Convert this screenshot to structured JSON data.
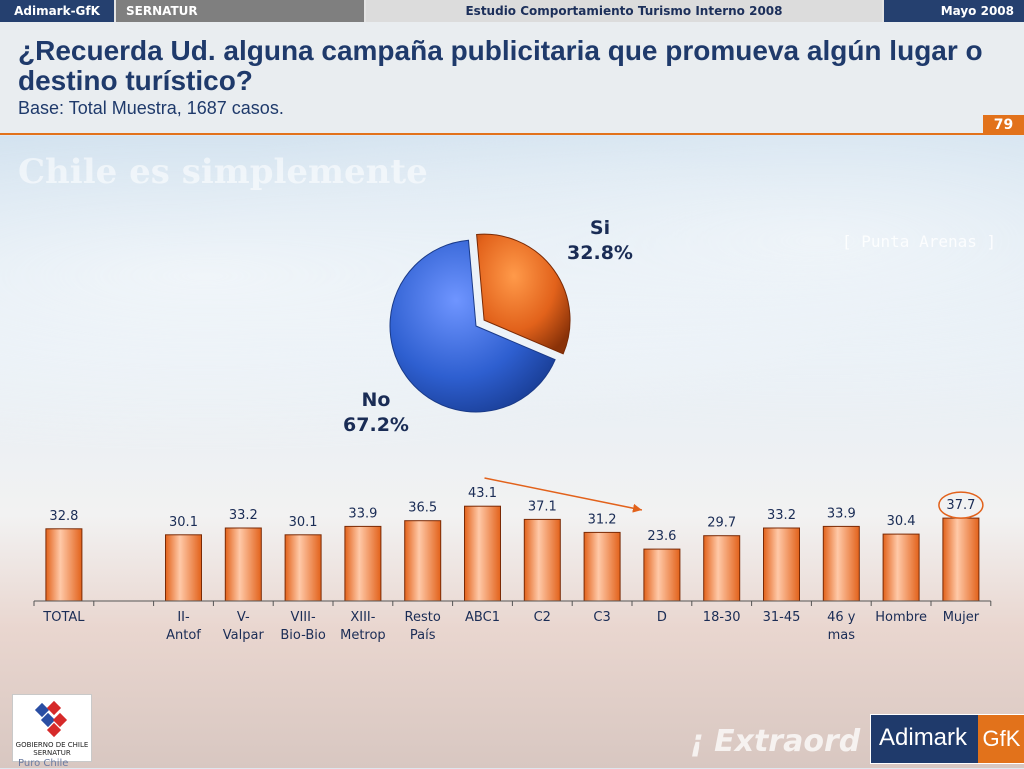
{
  "topbar": {
    "brand": "Adimark-GfK",
    "client": "SERNATUR",
    "study": "Estudio Comportamiento Turismo Interno 2008",
    "date": "Mayo 2008"
  },
  "header": {
    "title": "¿Recuerda Ud. alguna campaña publicitaria que promueva algún lugar o destino turístico?",
    "subtitle": "Base: Total Muestra, 1687 casos.",
    "page_number": "79"
  },
  "background_text": {
    "slogan": "Chile es simplemente",
    "place": "[ Punta Arenas ]",
    "bottom": "¡ Extraord"
  },
  "pie": {
    "si_label": "Si",
    "si_value": "32.8%",
    "no_label": "No",
    "no_value": "67.2%"
  },
  "chart_data": [
    {
      "type": "pie",
      "categories": [
        "Si",
        "No"
      ],
      "values": [
        32.8,
        67.2
      ],
      "colors": {
        "Si": "#e2621b",
        "No": "#2e5fd0"
      }
    },
    {
      "type": "bar",
      "categories": [
        "TOTAL",
        "",
        "II-\nAntof",
        "V-\nValpar",
        "VIII-\nBio-Bio",
        "XIII-\nMetrop",
        "Resto\nPaís",
        "ABC1",
        "C2",
        "C3",
        "D",
        "18-30",
        "31-45",
        "46 y\nmas",
        "Hombre",
        "Mujer"
      ],
      "values": [
        32.8,
        null,
        30.1,
        33.2,
        30.1,
        33.9,
        36.5,
        43.1,
        37.1,
        31.2,
        23.6,
        29.7,
        33.2,
        33.9,
        30.4,
        37.7
      ],
      "value_labels": [
        "32.8",
        "",
        "30.1",
        "33.2",
        "30.1",
        "33.9",
        "36.5",
        "43.1",
        "37.1",
        "31.2",
        "23.6",
        "29.7",
        "33.2",
        "33.9",
        "30.4",
        "37.7"
      ],
      "ylim": [
        0,
        50
      ],
      "bar_color": "#f08a4e",
      "highlight": "Mujer",
      "trend_arrow": {
        "from": "ABC1",
        "to": "D"
      }
    }
  ],
  "logos": {
    "gov": "GOBIERNO DE CHILE",
    "gov_sub": "SERNATUR",
    "puro": "Puro Chile",
    "adimark": "Adimark",
    "gfk": "GfK"
  }
}
